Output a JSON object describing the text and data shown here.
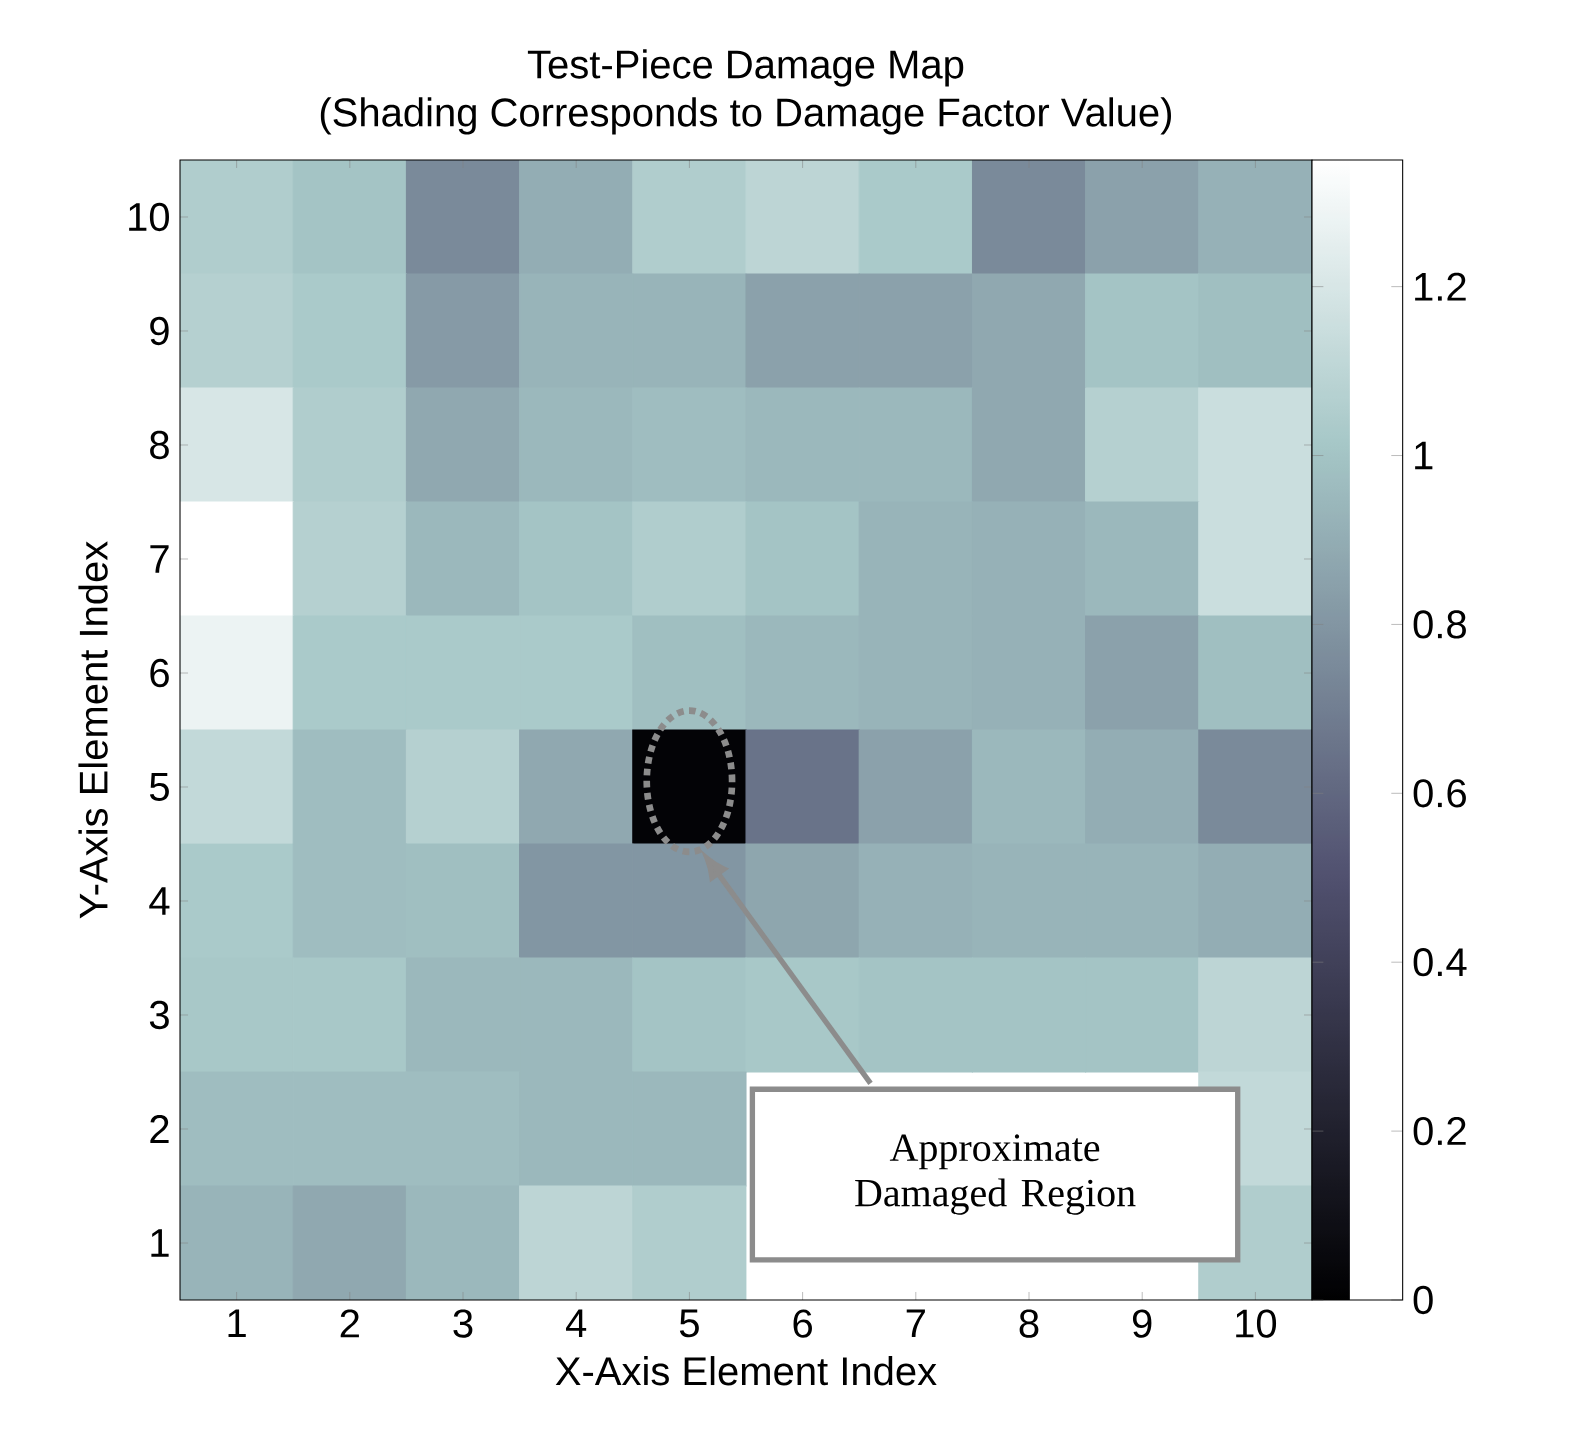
{
  "chart_data": {
    "type": "heatmap",
    "title": "Test-Piece Damage Map",
    "subtitle": "(Shading Corresponds to Damage Factor Value)",
    "xlabel": "X-Axis Element Index",
    "ylabel": "Y-Axis Element Index",
    "categories": [
      "1",
      "2",
      "3",
      "4",
      "5",
      "6",
      "7",
      "8",
      "9",
      "10"
    ],
    "y_categories": [
      "10",
      "9",
      "8",
      "7",
      "6",
      "5",
      "4",
      "3",
      "2",
      "1"
    ],
    "cells": [
      [
        1.05,
        1.0,
        0.75,
        0.9,
        1.05,
        1.1,
        1.03,
        0.75,
        0.85,
        0.92
      ],
      [
        1.07,
        1.03,
        0.82,
        0.93,
        0.93,
        0.85,
        0.85,
        0.88,
        1.0,
        0.98
      ],
      [
        1.2,
        1.05,
        0.88,
        0.95,
        0.97,
        0.95,
        0.95,
        0.88,
        1.07,
        1.15
      ],
      [
        1.35,
        1.07,
        0.95,
        1.0,
        1.05,
        1.0,
        0.93,
        0.92,
        0.95,
        1.15
      ],
      [
        1.28,
        1.03,
        1.03,
        1.03,
        0.98,
        0.95,
        0.93,
        0.92,
        0.85,
        0.98
      ],
      [
        1.12,
        0.97,
        1.07,
        0.88,
        0.02,
        0.65,
        0.85,
        0.95,
        0.9,
        0.75
      ],
      [
        1.03,
        0.97,
        0.98,
        0.8,
        0.8,
        0.87,
        0.92,
        0.93,
        0.93,
        0.9
      ],
      [
        1.02,
        1.02,
        0.95,
        0.95,
        1.0,
        1.02,
        1.0,
        1.0,
        1.0,
        1.1
      ],
      [
        0.97,
        0.97,
        0.97,
        0.95,
        0.95,
        null,
        null,
        null,
        null,
        1.12
      ],
      [
        0.93,
        0.88,
        0.95,
        1.1,
        1.05,
        null,
        null,
        null,
        null,
        1.05
      ]
    ],
    "clim": [
      0,
      1.35
    ],
    "cticks": [
      0,
      0.2,
      0.4,
      0.6,
      0.8,
      1,
      1.2
    ],
    "annotations": [
      "Approximate Damaged Region"
    ]
  }
}
